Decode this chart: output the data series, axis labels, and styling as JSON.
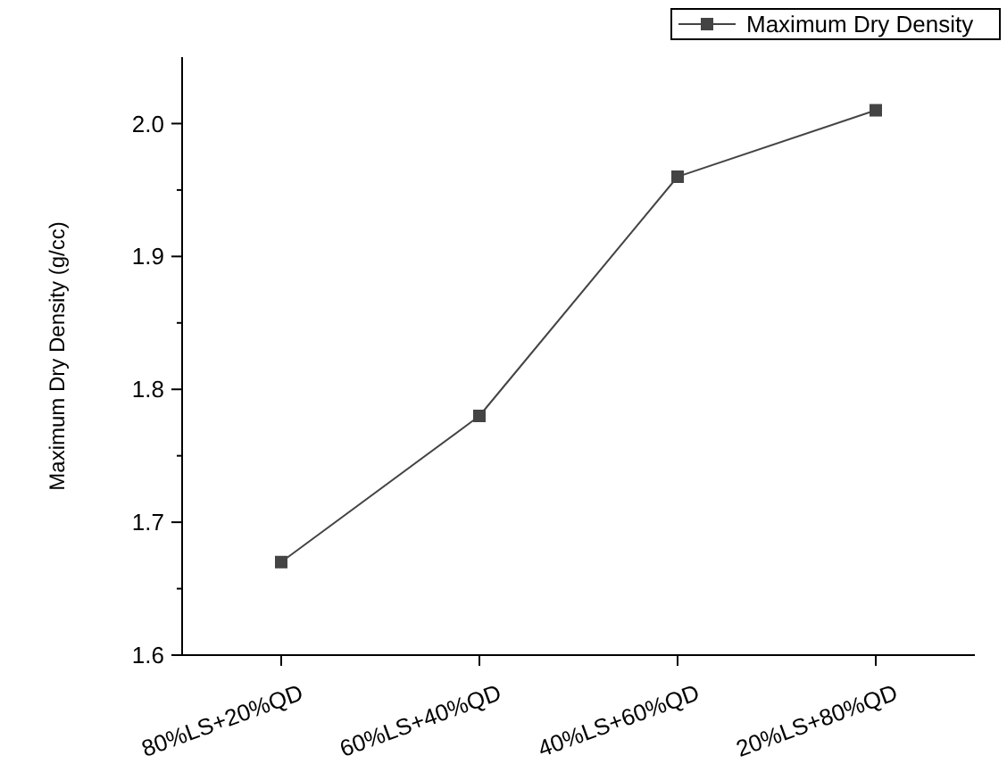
{
  "chart_data": {
    "type": "line",
    "ylabel": "Maximum Dry Density (g/cc)",
    "categories": [
      "80%LS+20%QD",
      "60%LS+40%QD",
      "40%LS+60%QD",
      "20%LS+80%QD"
    ],
    "series": [
      {
        "name": "Maximum Dry Density",
        "color": "#444444",
        "values": [
          1.67,
          1.78,
          1.96,
          2.01
        ]
      }
    ],
    "ylim": [
      1.6,
      2.05
    ],
    "yticks": [
      1.6,
      1.7,
      1.8,
      1.9,
      {
        "value": 2,
        "label": "2.0"
      }
    ],
    "grid": false,
    "legend": "top right",
    "marker": "square",
    "line_style": "solid"
  }
}
